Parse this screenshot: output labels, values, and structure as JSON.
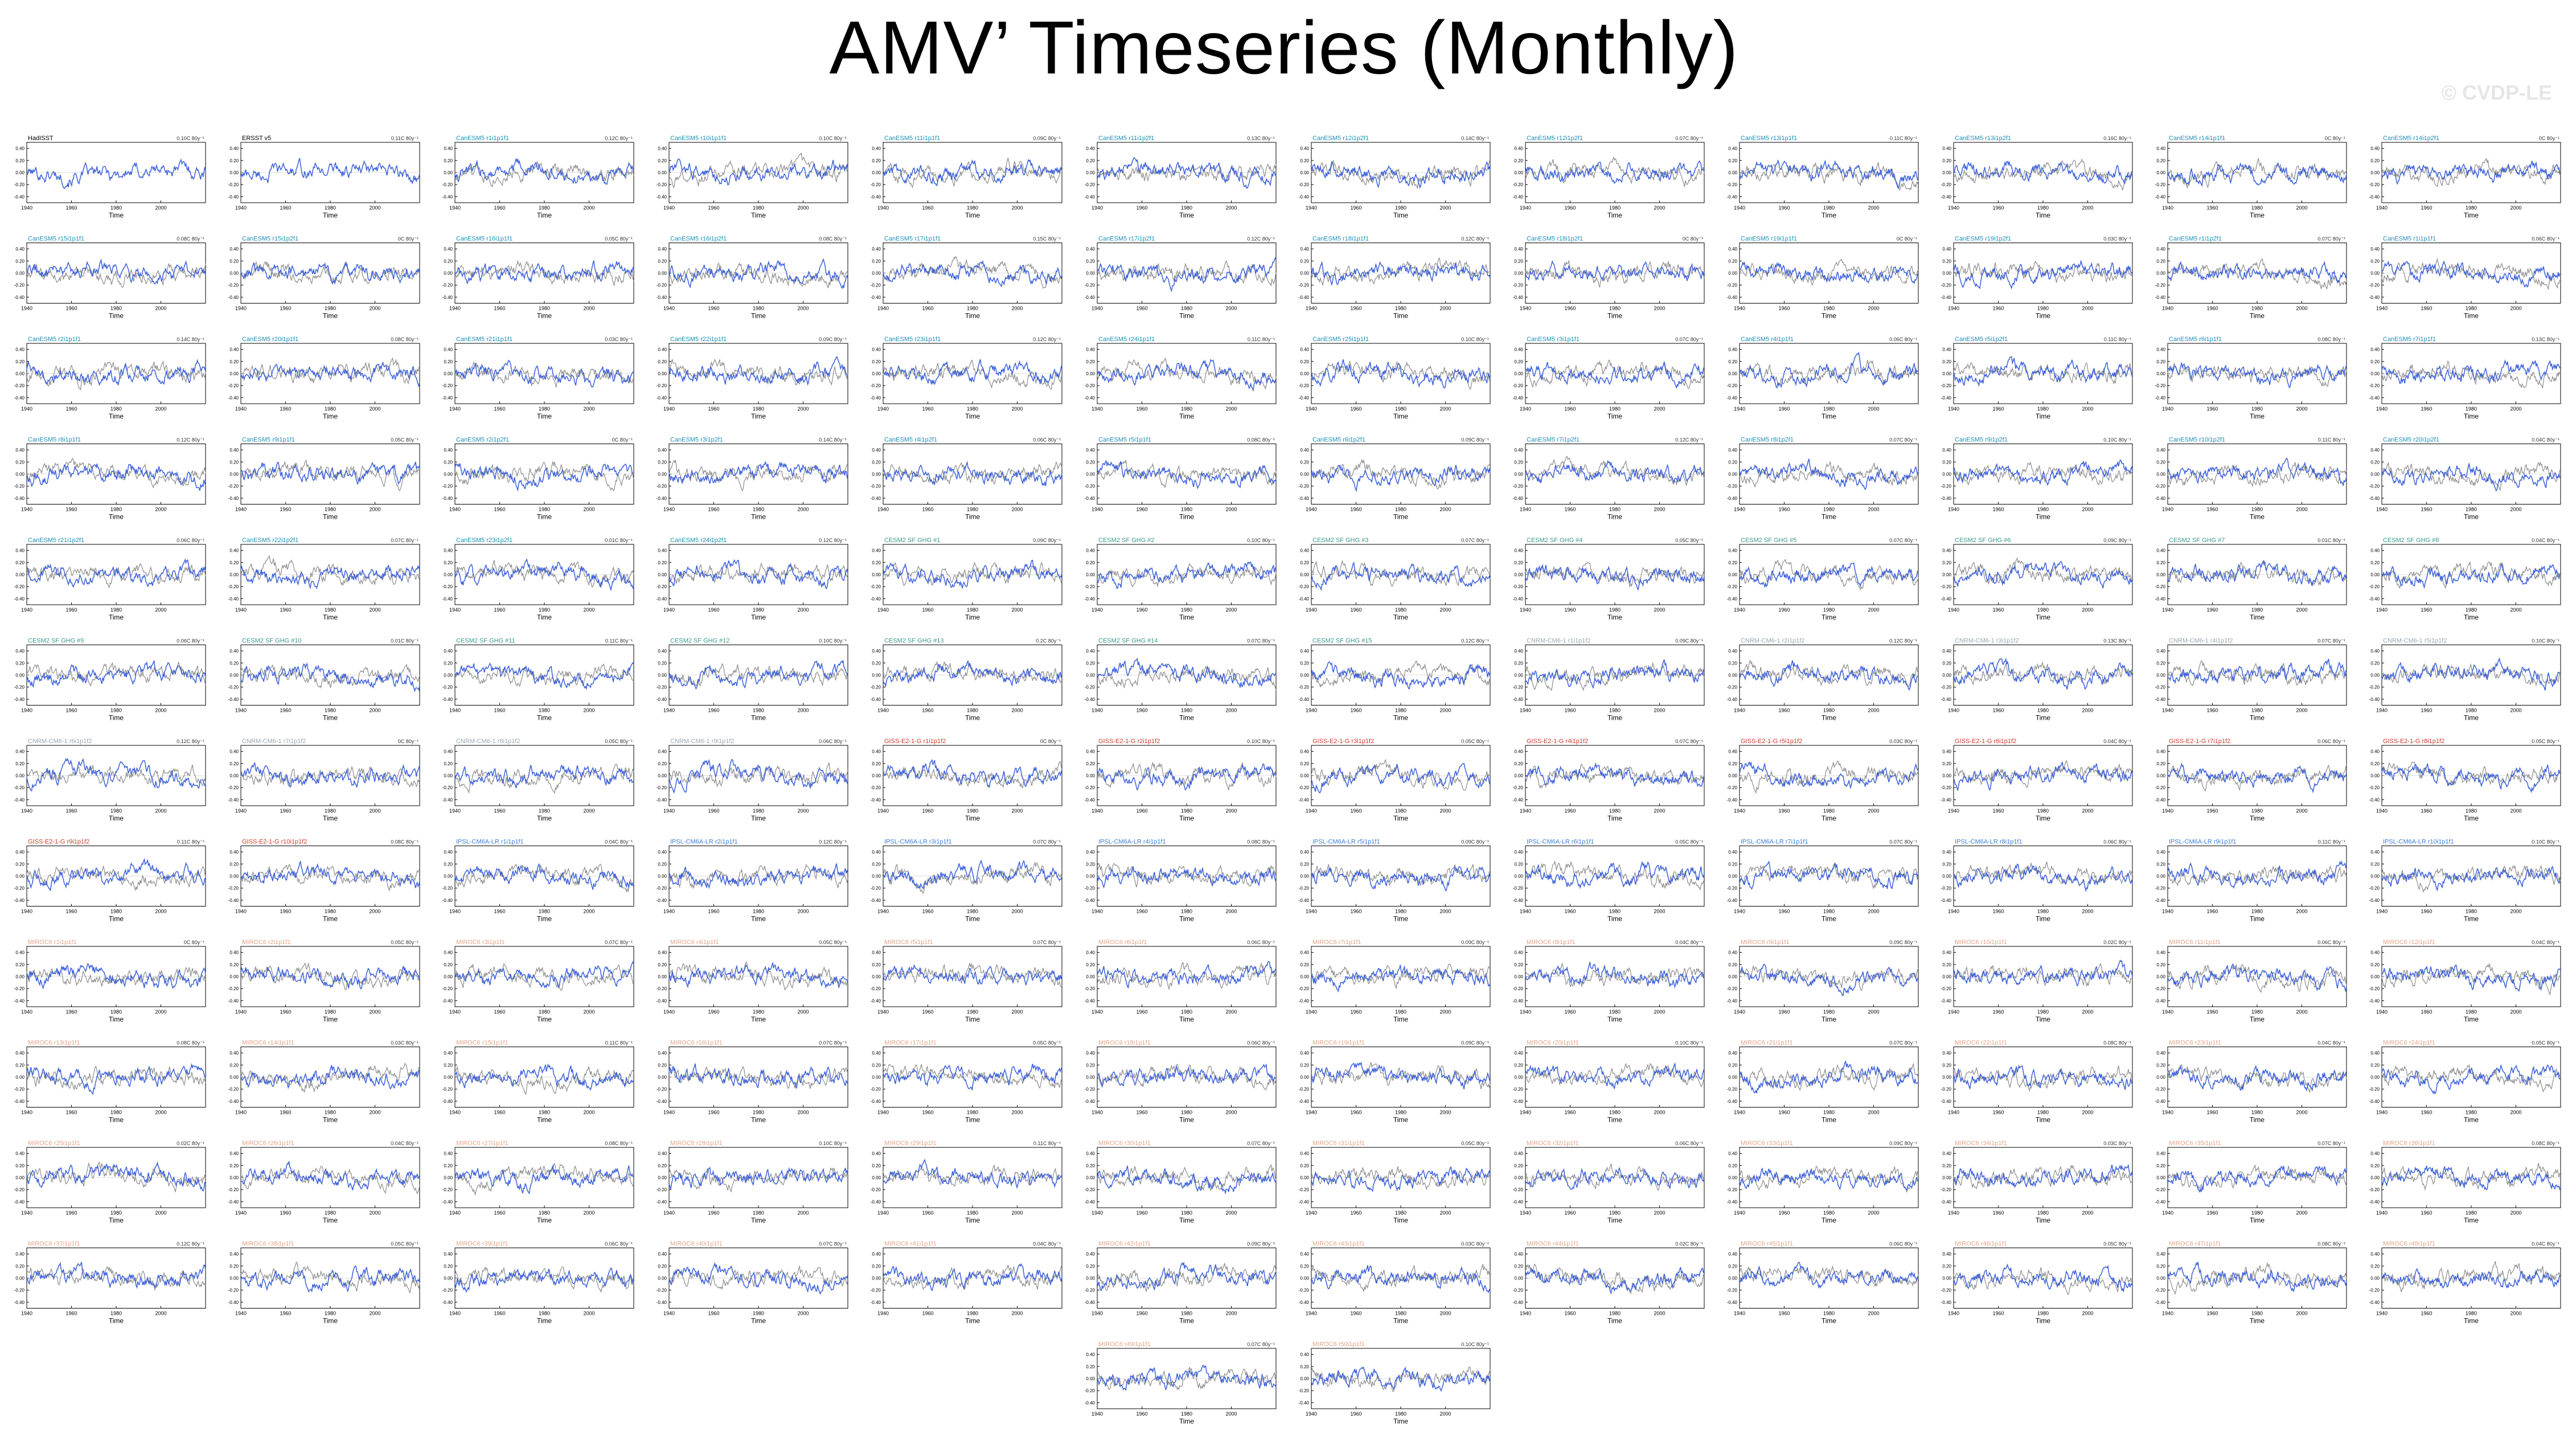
{
  "title": "AMV’ Timeseries (Monthly)",
  "watermark": "© CVDP-LE",
  "colors": {
    "model_line": "#3a5fd9",
    "obs_line": "#8c8c8c",
    "obs_title": "#000000",
    "cesm2": "#1f8fb8",
    "cesm1": "#3a9a8c",
    "cnrm": "#9aa6b0",
    "giss": "#cc3b2a",
    "ipsl": "#3d7fd6",
    "miroc": "#e3a487"
  },
  "chart_data": {
    "type": "line",
    "panel_layout": "12 columns x 12 rows plus 2 centered panels in a 13th row",
    "xlabel": "Time",
    "ylabel": "",
    "x_ticks": [
      "1940",
      "1960",
      "1980",
      "2000"
    ],
    "xlim": [
      1940,
      2020
    ],
    "y_ticks": [
      "0.40",
      "0.20",
      "0.00",
      "-0.20",
      "-0.40"
    ],
    "ylim": [
      -0.5,
      0.5
    ],
    "grid": false,
    "series_legend": "gray = observed, blue = ensemble member",
    "panels": [
      {
        "name": "HadISST",
        "group": "obs",
        "stat": "0.10C 80y⁻¹"
      },
      {
        "name": "ERSST v5",
        "group": "obs",
        "stat": "0.11C 80y⁻¹"
      },
      {
        "name": "CanESM5 r1i1p1f1",
        "group": "cesm2",
        "stat": "0.12C 80y⁻¹"
      },
      {
        "name": "CanESM5 r10i1p1f1",
        "group": "cesm2",
        "stat": "0.10C 80y⁻¹"
      },
      {
        "name": "CanESM5 r11i1p1f1",
        "group": "cesm2",
        "stat": "0.09C 80y⁻¹"
      },
      {
        "name": "CanESM5 r11i1p2f1",
        "group": "cesm2",
        "stat": "0.13C 80y⁻¹"
      },
      {
        "name": "CanESM5 r12i1p2f1",
        "group": "cesm2",
        "stat": "0.14C 80y⁻¹"
      },
      {
        "name": "CanESM5 r12i1p2f1",
        "group": "cesm2",
        "stat": "0.07C 80y⁻¹"
      },
      {
        "name": "CanESM5 r13i1p1f1",
        "group": "cesm2",
        "stat": "0.11C 80y⁻¹"
      },
      {
        "name": "CanESM5 r13i1p2f1",
        "group": "cesm2",
        "stat": "0.16C 80y⁻¹"
      },
      {
        "name": "CanESM5 r14i1p1f1",
        "group": "cesm2",
        "stat": "0C 80y⁻¹"
      },
      {
        "name": "CanESM5 r14i1p2f1",
        "group": "cesm2",
        "stat": "0C 80y⁻¹"
      },
      {
        "name": "CanESM5 r15i1p1f1",
        "group": "cesm2",
        "stat": "0.08C 80y⁻¹"
      },
      {
        "name": "CanESM5 r15i1p2f1",
        "group": "cesm2",
        "stat": "0C 80y⁻¹"
      },
      {
        "name": "CanESM5 r16i1p1f1",
        "group": "cesm2",
        "stat": "0.05C 80y⁻¹"
      },
      {
        "name": "CanESM5 r16i1p2f1",
        "group": "cesm2",
        "stat": "0.08C 80y⁻¹"
      },
      {
        "name": "CanESM5 r17i1p1f1",
        "group": "cesm2",
        "stat": "0.15C 80y⁻¹"
      },
      {
        "name": "CanESM5 r17i1p2f1",
        "group": "cesm2",
        "stat": "0.12C 80y⁻¹"
      },
      {
        "name": "CanESM5 r18i1p1f1",
        "group": "cesm2",
        "stat": "0.12C 80y⁻¹"
      },
      {
        "name": "CanESM5 r18i1p2f1",
        "group": "cesm2",
        "stat": "0C 80y⁻¹"
      },
      {
        "name": "CanESM5 r19i1p1f1",
        "group": "cesm2",
        "stat": "0C 80y⁻¹"
      },
      {
        "name": "CanESM5 r19i1p2f1",
        "group": "cesm2",
        "stat": "0.03C 80y⁻¹"
      },
      {
        "name": "CanESM5 r1i1p2f1",
        "group": "cesm2",
        "stat": "0.07C 80y⁻¹"
      },
      {
        "name": "CanESM5 r1i1p1f1",
        "group": "cesm2",
        "stat": "0.06C 80y⁻¹"
      },
      {
        "name": "CanESM5 r2i1p1f1",
        "group": "cesm2",
        "stat": "0.14C 80y⁻¹"
      },
      {
        "name": "CanESM5 r20i1p1f1",
        "group": "cesm2",
        "stat": "0.08C 80y⁻¹"
      },
      {
        "name": "CanESM5 r21i1p1f1",
        "group": "cesm2",
        "stat": "0.03C 80y⁻¹"
      },
      {
        "name": "CanESM5 r22i1p1f1",
        "group": "cesm2",
        "stat": "0.09C 80y⁻¹"
      },
      {
        "name": "CanESM5 r23i1p1f1",
        "group": "cesm2",
        "stat": "0.12C 80y⁻¹"
      },
      {
        "name": "CanESM5 r24i1p1f1",
        "group": "cesm2",
        "stat": "0.11C 80y⁻¹"
      },
      {
        "name": "CanESM5 r25i1p1f1",
        "group": "cesm2",
        "stat": "0.10C 80y⁻¹"
      },
      {
        "name": "CanESM5 r3i1p1f1",
        "group": "cesm2",
        "stat": "0.07C 80y⁻¹"
      },
      {
        "name": "CanESM5 r4i1p1f1",
        "group": "cesm2",
        "stat": "0.06C 80y⁻¹"
      },
      {
        "name": "CanESM5 r5i1p2f1",
        "group": "cesm2",
        "stat": "0.11C 80y⁻¹"
      },
      {
        "name": "CanESM5 r6i1p1f1",
        "group": "cesm2",
        "stat": "0.08C 80y⁻¹"
      },
      {
        "name": "CanESM5 r7i1p1f1",
        "group": "cesm2",
        "stat": "0.13C 80y⁻¹"
      },
      {
        "name": "CanESM5 r8i1p1f1",
        "group": "cesm2",
        "stat": "0.12C 80y⁻¹"
      },
      {
        "name": "CanESM5 r9i1p1f1",
        "group": "cesm2",
        "stat": "0.05C 80y⁻¹"
      },
      {
        "name": "CanESM5 r2i1p2f1",
        "group": "cesm2",
        "stat": "0C 80y⁻¹"
      },
      {
        "name": "CanESM5 r3i1p2f1",
        "group": "cesm2",
        "stat": "0.14C 80y⁻¹"
      },
      {
        "name": "CanESM5 r4i1p2f1",
        "group": "cesm2",
        "stat": "0.06C 80y⁻¹"
      },
      {
        "name": "CanESM5 r5i1p1f1",
        "group": "cesm2",
        "stat": "0.08C 80y⁻¹"
      },
      {
        "name": "CanESM5 r6i1p2f1",
        "group": "cesm2",
        "stat": "0.09C 80y⁻¹"
      },
      {
        "name": "CanESM5 r7i1p2f1",
        "group": "cesm2",
        "stat": "0.12C 80y⁻¹"
      },
      {
        "name": "CanESM5 r8i1p2f1",
        "group": "cesm2",
        "stat": "0.07C 80y⁻¹"
      },
      {
        "name": "CanESM5 r9i1p2f1",
        "group": "cesm2",
        "stat": "0.10C 80y⁻¹"
      },
      {
        "name": "CanESM5 r10i1p2f1",
        "group": "cesm2",
        "stat": "0.11C 80y⁻¹"
      },
      {
        "name": "CanESM5 r20i1p2f1",
        "group": "cesm2",
        "stat": "0.04C 80y⁻¹"
      },
      {
        "name": "CanESM5 r21i1p2f1",
        "group": "cesm2",
        "stat": "0.06C 80y⁻¹"
      },
      {
        "name": "CanESM5 r22i1p2f1",
        "group": "cesm2",
        "stat": "0.07C 80y⁻¹"
      },
      {
        "name": "CanESM5 r23i1p2f1",
        "group": "cesm2",
        "stat": "0.01C 80y⁻¹"
      },
      {
        "name": "CanESM5 r24i1p2f1",
        "group": "cesm2",
        "stat": "0.12C 80y⁻¹"
      },
      {
        "name": "CESM2 SF GHG #1",
        "group": "cesm1",
        "stat": "0.09C 80y⁻¹"
      },
      {
        "name": "CESM2 SF GHG #2",
        "group": "cesm1",
        "stat": "0.10C 80y⁻¹"
      },
      {
        "name": "CESM2 SF GHG #3",
        "group": "cesm1",
        "stat": "0.07C 80y⁻¹"
      },
      {
        "name": "CESM2 SF GHG #4",
        "group": "cesm1",
        "stat": "0.05C 80y⁻¹"
      },
      {
        "name": "CESM2 SF GHG #5",
        "group": "cesm1",
        "stat": "0.07C 80y⁻¹"
      },
      {
        "name": "CESM2 SF GHG #6",
        "group": "cesm1",
        "stat": "0.09C 80y⁻¹"
      },
      {
        "name": "CESM2 SF GHG #7",
        "group": "cesm1",
        "stat": "0.01C 80y⁻¹"
      },
      {
        "name": "CESM2 SF GHG #8",
        "group": "cesm1",
        "stat": "0.04C 80y⁻¹"
      },
      {
        "name": "CESM2 SF GHG #9",
        "group": "cesm1",
        "stat": "0.06C 80y⁻¹"
      },
      {
        "name": "CESM2 SF GHG #10",
        "group": "cesm1",
        "stat": "0.01C 80y⁻¹"
      },
      {
        "name": "CESM2 SF GHG #11",
        "group": "cesm1",
        "stat": "0.11C 80y⁻¹"
      },
      {
        "name": "CESM2 SF GHG #12",
        "group": "cesm1",
        "stat": "0.10C 80y⁻¹"
      },
      {
        "name": "CESM2 SF GHG #13",
        "group": "cesm1",
        "stat": "0.2C 80y⁻¹"
      },
      {
        "name": "CESM2 SF GHG #14",
        "group": "cesm1",
        "stat": "0.07C 80y⁻¹"
      },
      {
        "name": "CESM2 SF GHG #15",
        "group": "cesm1",
        "stat": "0.12C 80y⁻¹"
      },
      {
        "name": "CNRM-CM6-1 r1i1p1f2",
        "group": "cnrm",
        "stat": "0.09C 80y⁻¹"
      },
      {
        "name": "CNRM-CM6-1 r2i1p1f2",
        "group": "cnrm",
        "stat": "0.12C 80y⁻¹"
      },
      {
        "name": "CNRM-CM6-1 r3i1p1f2",
        "group": "cnrm",
        "stat": "0.13C 80y⁻¹"
      },
      {
        "name": "CNRM-CM6-1 r4i1p1f2",
        "group": "cnrm",
        "stat": "0.07C 80y⁻¹"
      },
      {
        "name": "CNRM-CM6-1 r5i1p1f2",
        "group": "cnrm",
        "stat": "0.10C 80y⁻¹"
      },
      {
        "name": "CNRM-CM6-1 r6i1p1f2",
        "group": "cnrm",
        "stat": "0.12C 80y⁻¹"
      },
      {
        "name": "CNRM-CM6-1 r7i1p1f2",
        "group": "cnrm",
        "stat": "0C 80y⁻¹"
      },
      {
        "name": "CNRM-CM6-1 r8i1p1f2",
        "group": "cnrm",
        "stat": "0.05C 80y⁻¹"
      },
      {
        "name": "CNRM-CM6-1 r9i1p1f2",
        "group": "cnrm",
        "stat": "0.06C 80y⁻¹"
      },
      {
        "name": "GISS-E2-1-G r1i1p1f2",
        "group": "giss",
        "stat": "0C 80y⁻¹"
      },
      {
        "name": "GISS-E2-1-G r2i1p1f2",
        "group": "giss",
        "stat": "0.10C 80y⁻¹"
      },
      {
        "name": "GISS-E2-1-G r3i1p1f2",
        "group": "giss",
        "stat": "0.05C 80y⁻¹"
      },
      {
        "name": "GISS-E2-1-G r4i1p1f2",
        "group": "giss",
        "stat": "0.07C 80y⁻¹"
      },
      {
        "name": "GISS-E2-1-G r5i1p1f2",
        "group": "giss",
        "stat": "0.03C 80y⁻¹"
      },
      {
        "name": "GISS-E2-1-G r6i1p1f2",
        "group": "giss",
        "stat": "0.04C 80y⁻¹"
      },
      {
        "name": "GISS-E2-1-G r7i1p1f2",
        "group": "giss",
        "stat": "0.06C 80y⁻¹"
      },
      {
        "name": "GISS-E2-1-G r8i1p1f2",
        "group": "giss",
        "stat": "0.05C 80y⁻¹"
      },
      {
        "name": "GISS-E2-1-G r9i1p1f2",
        "group": "giss",
        "stat": "0.11C 80y⁻¹"
      },
      {
        "name": "GISS-E2-1-G r10i1p1f2",
        "group": "giss",
        "stat": "0.08C 80y⁻¹"
      },
      {
        "name": "IPSL-CM6A-LR r1i1p1f1",
        "group": "ipsl",
        "stat": "0.04C 80y⁻¹"
      },
      {
        "name": "IPSL-CM6A-LR r2i1p1f1",
        "group": "ipsl",
        "stat": "0.12C 80y⁻¹"
      },
      {
        "name": "IPSL-CM6A-LR r3i1p1f1",
        "group": "ipsl",
        "stat": "0.07C 80y⁻¹"
      },
      {
        "name": "IPSL-CM6A-LR r4i1p1f1",
        "group": "ipsl",
        "stat": "0.08C 80y⁻¹"
      },
      {
        "name": "IPSL-CM6A-LR r5i1p1f1",
        "group": "ipsl",
        "stat": "0.09C 80y⁻¹"
      },
      {
        "name": "IPSL-CM6A-LR r6i1p1f1",
        "group": "ipsl",
        "stat": "0.05C 80y⁻¹"
      },
      {
        "name": "IPSL-CM6A-LR r7i1p1f1",
        "group": "ipsl",
        "stat": "0.07C 80y⁻¹"
      },
      {
        "name": "IPSL-CM6A-LR r8i1p1f1",
        "group": "ipsl",
        "stat": "0.06C 80y⁻¹"
      },
      {
        "name": "IPSL-CM6A-LR r9i1p1f1",
        "group": "ipsl",
        "stat": "0.11C 80y⁻¹"
      },
      {
        "name": "IPSL-CM6A-LR r10i1p1f1",
        "group": "ipsl",
        "stat": "0.10C 80y⁻¹"
      },
      {
        "name": "MIROC6 r1i1p1f1",
        "group": "miroc",
        "stat": "0C 80y⁻¹"
      },
      {
        "name": "MIROC6 r2i1p1f1",
        "group": "miroc",
        "stat": "0.05C 80y⁻¹"
      },
      {
        "name": "MIROC6 r3i1p1f1",
        "group": "miroc",
        "stat": "0.07C 80y⁻¹"
      },
      {
        "name": "MIROC6 r4i1p1f1",
        "group": "miroc",
        "stat": "0.05C 80y⁻¹"
      },
      {
        "name": "MIROC6 r5i1p1f1",
        "group": "miroc",
        "stat": "0.07C 80y⁻¹"
      },
      {
        "name": "MIROC6 r6i1p1f1",
        "group": "miroc",
        "stat": "0.06C 80y⁻¹"
      },
      {
        "name": "MIROC6 r7i1p1f1",
        "group": "miroc",
        "stat": "0.09C 80y⁻¹"
      },
      {
        "name": "MIROC6 r8i1p1f1",
        "group": "miroc",
        "stat": "0.04C 80y⁻¹"
      },
      {
        "name": "MIROC6 r9i1p1f1",
        "group": "miroc",
        "stat": "0.09C 80y⁻¹"
      },
      {
        "name": "MIROC6 r10i1p1f1",
        "group": "miroc",
        "stat": "0.02C 80y⁻¹"
      },
      {
        "name": "MIROC6 r11i1p1f1",
        "group": "miroc",
        "stat": "0.06C 80y⁻¹"
      },
      {
        "name": "MIROC6 r12i1p1f1",
        "group": "miroc",
        "stat": "0.04C 80y⁻¹"
      },
      {
        "name": "MIROC6 r13i1p1f1",
        "group": "miroc",
        "stat": "0.08C 80y⁻¹"
      },
      {
        "name": "MIROC6 r14i1p1f1",
        "group": "miroc",
        "stat": "0.03C 80y⁻¹"
      },
      {
        "name": "MIROC6 r15i1p1f1",
        "group": "miroc",
        "stat": "0.11C 80y⁻¹"
      },
      {
        "name": "MIROC6 r16i1p1f1",
        "group": "miroc",
        "stat": "0.07C 80y⁻¹"
      },
      {
        "name": "MIROC6 r17i1p1f1",
        "group": "miroc",
        "stat": "0.05C 80y⁻¹"
      },
      {
        "name": "MIROC6 r18i1p1f1",
        "group": "miroc",
        "stat": "0.06C 80y⁻¹"
      },
      {
        "name": "MIROC6 r19i1p1f1",
        "group": "miroc",
        "stat": "0.09C 80y⁻¹"
      },
      {
        "name": "MIROC6 r20i1p1f1",
        "group": "miroc",
        "stat": "0.10C 80y⁻¹"
      },
      {
        "name": "MIROC6 r21i1p1f1",
        "group": "miroc",
        "stat": "0.07C 80y⁻¹"
      },
      {
        "name": "MIROC6 r22i1p1f1",
        "group": "miroc",
        "stat": "0.08C 80y⁻¹"
      },
      {
        "name": "MIROC6 r23i1p1f1",
        "group": "miroc",
        "stat": "0.04C 80y⁻¹"
      },
      {
        "name": "MIROC6 r24i1p1f1",
        "group": "miroc",
        "stat": "0.05C 80y⁻¹"
      },
      {
        "name": "MIROC6 r25i1p1f1",
        "group": "miroc",
        "stat": "0.02C 80y⁻¹"
      },
      {
        "name": "MIROC6 r26i1p1f1",
        "group": "miroc",
        "stat": "0.04C 80y⁻¹"
      },
      {
        "name": "MIROC6 r27i1p1f1",
        "group": "miroc",
        "stat": "0.08C 80y⁻¹"
      },
      {
        "name": "MIROC6 r28i1p1f1",
        "group": "miroc",
        "stat": "0.10C 80y⁻¹"
      },
      {
        "name": "MIROC6 r29i1p1f1",
        "group": "miroc",
        "stat": "0.11C 80y⁻¹"
      },
      {
        "name": "MIROC6 r30i1p1f1",
        "group": "miroc",
        "stat": "0.07C 80y⁻¹"
      },
      {
        "name": "MIROC6 r31i1p1f1",
        "group": "miroc",
        "stat": "0.05C 80y⁻¹"
      },
      {
        "name": "MIROC6 r32i1p1f1",
        "group": "miroc",
        "stat": "0.06C 80y⁻¹"
      },
      {
        "name": "MIROC6 r33i1p1f1",
        "group": "miroc",
        "stat": "0.09C 80y⁻¹"
      },
      {
        "name": "MIROC6 r34i1p1f1",
        "group": "miroc",
        "stat": "0.03C 80y⁻¹"
      },
      {
        "name": "MIROC6 r35i1p1f1",
        "group": "miroc",
        "stat": "0.07C 80y⁻¹"
      },
      {
        "name": "MIROC6 r36i1p1f1",
        "group": "miroc",
        "stat": "0.08C 80y⁻¹"
      },
      {
        "name": "MIROC6 r37i1p1f1",
        "group": "miroc",
        "stat": "0.12C 80y⁻¹"
      },
      {
        "name": "MIROC6 r38i1p1f1",
        "group": "miroc",
        "stat": "0.05C 80y⁻¹"
      },
      {
        "name": "MIROC6 r39i1p1f1",
        "group": "miroc",
        "stat": "0.06C 80y⁻¹"
      },
      {
        "name": "MIROC6 r40i1p1f1",
        "group": "miroc",
        "stat": "0.07C 80y⁻¹"
      },
      {
        "name": "MIROC6 r41i1p1f1",
        "group": "miroc",
        "stat": "0.04C 80y⁻¹"
      },
      {
        "name": "MIROC6 r42i1p1f1",
        "group": "miroc",
        "stat": "0.09C 80y⁻¹"
      },
      {
        "name": "MIROC6 r43i1p1f1",
        "group": "miroc",
        "stat": "0.03C 80y⁻¹"
      },
      {
        "name": "MIROC6 r44i1p1f1",
        "group": "miroc",
        "stat": "0.02C 80y⁻¹"
      },
      {
        "name": "MIROC6 r45i1p1f1",
        "group": "miroc",
        "stat": "0.06C 80y⁻¹"
      },
      {
        "name": "MIROC6 r46i1p1f1",
        "group": "miroc",
        "stat": "0.05C 80y⁻¹"
      },
      {
        "name": "MIROC6 r47i1p1f1",
        "group": "miroc",
        "stat": "0.08C 80y⁻¹"
      },
      {
        "name": "MIROC6 r48i1p1f1",
        "group": "miroc",
        "stat": "0.04C 80y⁻¹"
      },
      {
        "name": "MIROC6 r49i1p1f1",
        "group": "miroc",
        "stat": "0.07C 80y⁻¹"
      },
      {
        "name": "MIROC6 r50i1p1f1",
        "group": "miroc",
        "stat": "0.10C 80y⁻¹"
      }
    ]
  }
}
